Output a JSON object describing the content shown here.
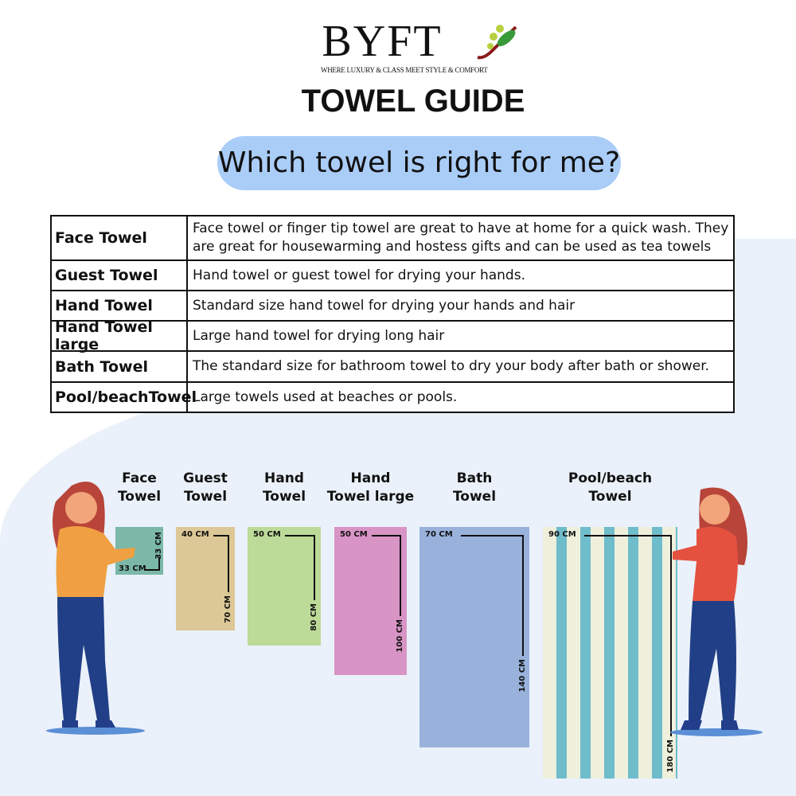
{
  "logo": {
    "brand": "BYFT",
    "tagline": "WHERE LUXURY & CLASS MEET STYLE & COMFORT"
  },
  "title": "TOWEL GUIDE",
  "subtitle": "Which towel is right for me?",
  "table": [
    {
      "name": "Face Towel",
      "desc": "Face towel or finger tip towel are great to have at home for a quick wash. They are great for housewarming and hostess gifts and can be used as tea towels"
    },
    {
      "name": "Guest Towel",
      "desc": "Hand towel or guest towel for drying your hands."
    },
    {
      "name": "Hand Towel",
      "desc": "Standard size hand towel for drying your hands and hair"
    },
    {
      "name": "Hand Towel large",
      "desc": "Large hand towel for drying long hair"
    },
    {
      "name": "Bath Towel",
      "desc": "The standard size for bathroom towel to dry your body after bath or shower."
    },
    {
      "name": "Pool/beachTowel",
      "desc": "Large towels used at beaches or pools."
    }
  ],
  "towels": [
    {
      "label1": "Face",
      "label2": "Towel",
      "width": "33 CM",
      "height": "33 CM",
      "color": "#7bb8a8"
    },
    {
      "label1": "Guest",
      "label2": "Towel",
      "width": "40 CM",
      "height": "70 CM",
      "color": "#dcc896"
    },
    {
      "label1": "Hand",
      "label2": "Towel",
      "width": "50 CM",
      "height": "80 CM",
      "color": "#bcda98"
    },
    {
      "label1": "Hand",
      "label2": "Towel large",
      "width": "50 CM",
      "height": "100 CM",
      "color": "#d994c6"
    },
    {
      "label1": "Bath",
      "label2": "Towel",
      "width": "70 CM",
      "height": "140 CM",
      "color": "#99b2dc"
    },
    {
      "label1": "Pool/beach",
      "label2": "Towel",
      "width": "90 CM",
      "height": "180 CM",
      "color": "#eef0dc",
      "stripe": "#6fbccb"
    }
  ]
}
